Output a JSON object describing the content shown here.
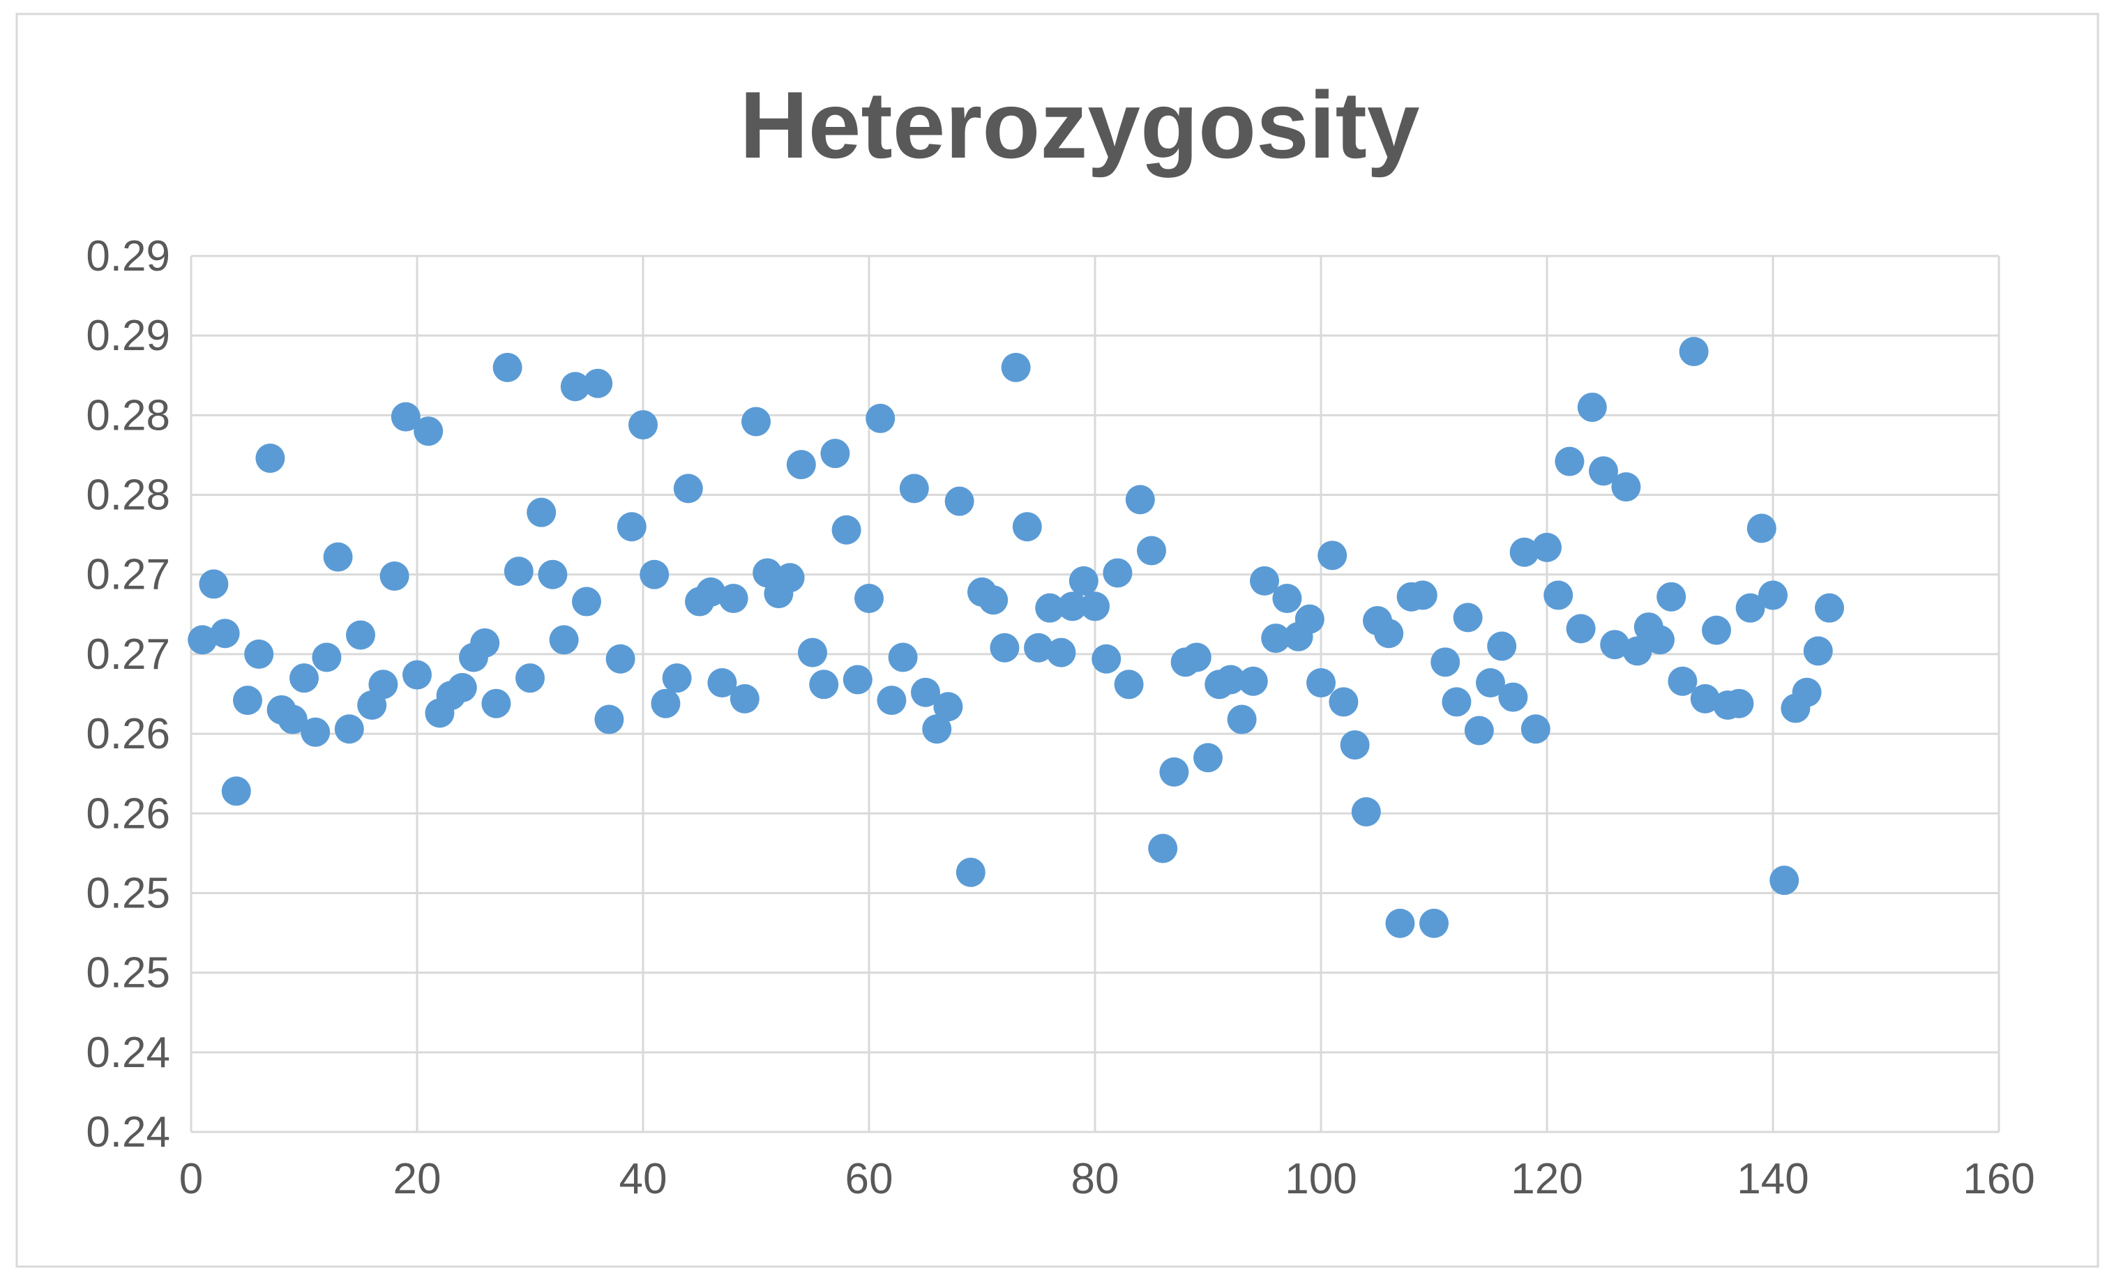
{
  "colors": {
    "marker": "#5B9BD5",
    "grid": "#D9D9D9",
    "text": "#595959",
    "border": "#D9D9D9"
  },
  "chart_data": {
    "type": "scatter",
    "title": "Heterozygosity",
    "xlabel": "",
    "ylabel": "",
    "xlim": [
      0,
      160
    ],
    "ylim": [
      0.2375,
      0.2925
    ],
    "grid": true,
    "legend": "none",
    "x_ticks": [
      0,
      20,
      40,
      60,
      80,
      100,
      120,
      140,
      160
    ],
    "x_tick_labels": [
      "0",
      "20",
      "40",
      "60",
      "80",
      "100",
      "120",
      "140",
      "160"
    ],
    "y_ticks": [
      0.2375,
      0.2425,
      0.2475,
      0.2525,
      0.2575,
      0.2625,
      0.2675,
      0.2725,
      0.2775,
      0.2825,
      0.2875,
      0.2925
    ],
    "y_tick_labels": [
      "0.24",
      "0.24",
      "0.25",
      "0.25",
      "0.26",
      "0.26",
      "0.27",
      "0.27",
      "0.28",
      "0.28",
      "0.29",
      "0.29"
    ],
    "series": [
      {
        "x": [
          1,
          2,
          3,
          4,
          5,
          6,
          7,
          8,
          9,
          10,
          11,
          12,
          13,
          14,
          15,
          16,
          17,
          18,
          19,
          20,
          21,
          22,
          23,
          24,
          25,
          26,
          27,
          28,
          29,
          30,
          31,
          32,
          33,
          34,
          35,
          36,
          37,
          38,
          39,
          40,
          41,
          42,
          43,
          44,
          45,
          46,
          47,
          48,
          49,
          50,
          51,
          52,
          53,
          54,
          55,
          56,
          57,
          58,
          59,
          60,
          61,
          62,
          63,
          64,
          65,
          66,
          67,
          68,
          69,
          70,
          71,
          72,
          73,
          74,
          75,
          76,
          77,
          78,
          79,
          80,
          81,
          82,
          83,
          84,
          85,
          86,
          87,
          88,
          89,
          90,
          91,
          92,
          93,
          94,
          95,
          96,
          97,
          98,
          99,
          100,
          101,
          102,
          103,
          104,
          105,
          106,
          107,
          108,
          109,
          110,
          111,
          112,
          113,
          114,
          115,
          116,
          117,
          118,
          119,
          120,
          121,
          122,
          123,
          124,
          125,
          126,
          127,
          128,
          129,
          130,
          131,
          132,
          133,
          134,
          135,
          136,
          137,
          138,
          139,
          140,
          141,
          142,
          143,
          144,
          145
        ],
        "y": [
          0.2684,
          0.2719,
          0.2688,
          0.2589,
          0.2646,
          0.2675,
          0.2798,
          0.264,
          0.2634,
          0.266,
          0.2626,
          0.2673,
          0.2736,
          0.2628,
          0.2687,
          0.2643,
          0.2656,
          0.2724,
          0.2824,
          0.2662,
          0.2815,
          0.2638,
          0.2649,
          0.2654,
          0.2673,
          0.2682,
          0.2644,
          0.2855,
          0.2727,
          0.266,
          0.2764,
          0.2725,
          0.2684,
          0.2843,
          0.2708,
          0.2845,
          0.2634,
          0.2672,
          0.2755,
          0.2819,
          0.2725,
          0.2644,
          0.266,
          0.2779,
          0.2708,
          0.2714,
          0.2657,
          0.271,
          0.2647,
          0.2821,
          0.2726,
          0.2713,
          0.2723,
          0.2794,
          0.2676,
          0.2656,
          0.2801,
          0.2753,
          0.2659,
          0.271,
          0.2823,
          0.2646,
          0.2673,
          0.2779,
          0.2651,
          0.2628,
          0.2642,
          0.2771,
          0.2538,
          0.2714,
          0.2709,
          0.2679,
          0.2855,
          0.2755,
          0.2679,
          0.2704,
          0.2676,
          0.2705,
          0.2721,
          0.2705,
          0.2672,
          0.2726,
          0.2656,
          0.2772,
          0.274,
          0.2553,
          0.2601,
          0.267,
          0.2673,
          0.261,
          0.2656,
          0.2659,
          0.2634,
          0.2658,
          0.2721,
          0.2685,
          0.271,
          0.2686,
          0.2697,
          0.2657,
          0.2737,
          0.2645,
          0.2618,
          0.2576,
          0.2696,
          0.2688,
          0.2506,
          0.2711,
          0.2712,
          0.2506,
          0.267,
          0.2645,
          0.2698,
          0.2627,
          0.2657,
          0.268,
          0.2648,
          0.2739,
          0.2628,
          0.2742,
          0.2712,
          0.2796,
          0.2691,
          0.283,
          0.279,
          0.2681,
          0.278,
          0.2677,
          0.2692,
          0.2684,
          0.2711,
          0.2658,
          0.2865,
          0.2647,
          0.269,
          0.2643,
          0.2644,
          0.2704,
          0.2754,
          0.2712,
          0.2533,
          0.2641,
          0.2651,
          0.2677,
          0.2704
        ]
      }
    ]
  }
}
